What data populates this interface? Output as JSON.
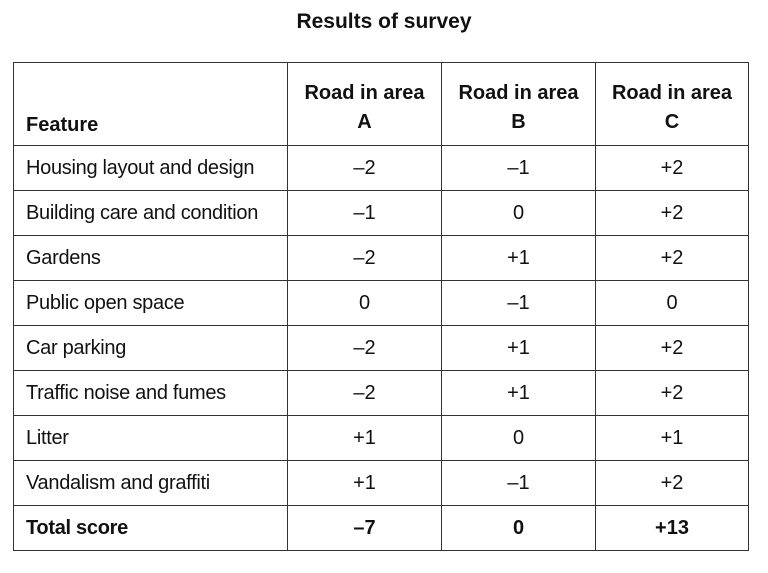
{
  "title": "Results of survey",
  "table": {
    "header": [
      "Feature",
      "Road in area A",
      "Road in area B",
      "Road in area C"
    ],
    "rows": [
      [
        "Housing layout and design",
        "–2",
        "–1",
        "+2"
      ],
      [
        "Building care and condition",
        "–1",
        "0",
        "+2"
      ],
      [
        "Gardens",
        "–2",
        "+1",
        "+2"
      ],
      [
        "Public open space",
        "0",
        "–1",
        "0"
      ],
      [
        "Car parking",
        "–2",
        "+1",
        "+2"
      ],
      [
        "Traffic noise and fumes",
        "–2",
        "+1",
        "+2"
      ],
      [
        "Litter",
        "+1",
        "0",
        "+1"
      ],
      [
        "Vandalism and graffiti",
        "+1",
        "–1",
        "+2"
      ]
    ],
    "total": [
      "Total score",
      "–7",
      "0",
      "+13"
    ]
  }
}
